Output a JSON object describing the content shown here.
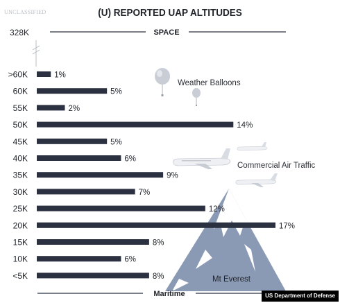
{
  "classification": "UNCLASSIFIED",
  "credit": "US Department of Defense",
  "chart_data": {
    "type": "bar",
    "orientation": "horizontal",
    "title": "(U) REPORTED UAP ALTITUDES",
    "top_label": "328K",
    "top_band_label": "SPACE",
    "bottom_band_label": "Maritime",
    "categories": [
      ">60K",
      "60K",
      "55K",
      "50K",
      "45K",
      "40K",
      "35K",
      "30K",
      "25K",
      "20K",
      "15K",
      "10K",
      "<5K"
    ],
    "values": [
      1,
      5,
      2,
      14,
      5,
      6,
      9,
      7,
      12,
      17,
      8,
      6,
      8
    ],
    "value_labels": [
      "1%",
      "5%",
      "2%",
      "14%",
      "5%",
      "6%",
      "9%",
      "7%",
      "12%",
      "17%",
      "8%",
      "6%",
      "8%"
    ],
    "unit": "%",
    "xlim": [
      0,
      17
    ],
    "annotations": [
      "Weather Balloons",
      "Commercial Air Traffic",
      "Mt Everest"
    ],
    "bar_color": "#2b3140",
    "illustration_color": "#8a99b4"
  }
}
